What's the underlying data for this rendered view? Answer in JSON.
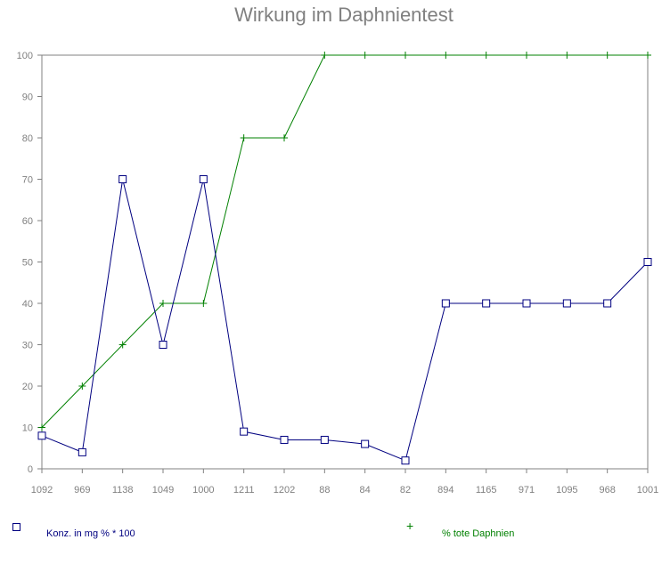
{
  "chart_data": {
    "type": "line",
    "title": "Wirkung im Daphnientest",
    "xlabel": "",
    "ylabel": "",
    "categories": [
      "1092",
      "969",
      "1138",
      "1049",
      "1000",
      "1211",
      "1202",
      "88",
      "84",
      "82",
      "894",
      "1165",
      "971",
      "1095",
      "968",
      "1001"
    ],
    "ylim": [
      0,
      100
    ],
    "yticks": [
      "0",
      "10",
      "20",
      "30",
      "40",
      "50",
      "60",
      "70",
      "80",
      "90",
      "100"
    ],
    "grid": false,
    "legend_position": "bottom",
    "series": [
      {
        "name": "Konz. in mg % * 100",
        "color": "#000080",
        "marker": "square-icon",
        "values": [
          8,
          4,
          70,
          30,
          70,
          9,
          7,
          7,
          6,
          2,
          40,
          40,
          40,
          40,
          40,
          50
        ]
      },
      {
        "name": "% tote Daphnien",
        "color": "#008000",
        "marker": "plus-icon",
        "values": [
          10,
          20,
          30,
          40,
          40,
          80,
          80,
          100,
          100,
          100,
          100,
          100,
          100,
          100,
          100,
          100
        ]
      }
    ]
  },
  "legend": {
    "conc_label": "Konz. in mg % * 100",
    "dead_label": "% tote Daphnien"
  }
}
